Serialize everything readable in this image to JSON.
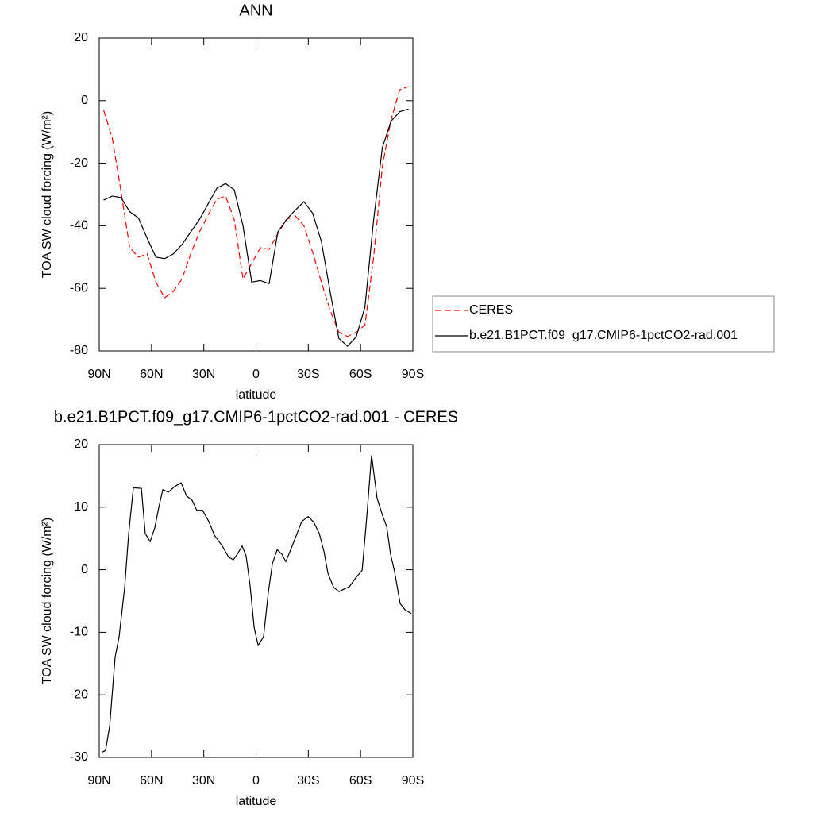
{
  "chart_data": [
    {
      "type": "line",
      "title": "ANN",
      "xlabel": "latitude",
      "ylabel": "TOA SW cloud forcing (W/m²)",
      "x": [
        87.5,
        82.5,
        77.5,
        72.5,
        67.5,
        62.5,
        57.5,
        52.5,
        47.5,
        42.5,
        37.5,
        32.5,
        27.5,
        22.5,
        17.5,
        12.5,
        7.5,
        2.5,
        -2.5,
        -7.5,
        -12.5,
        -17.5,
        -22.5,
        -27.5,
        -32.5,
        -37.5,
        -42.5,
        -47.5,
        -52.5,
        -57.5,
        -62.5,
        -67.5,
        -72.5,
        -77.5,
        -82.5,
        -87.5
      ],
      "series": [
        {
          "name": "CERES",
          "color": "#ff0000",
          "dash": "dashed",
          "values": [
            -3,
            -12,
            -29,
            -47,
            -50,
            -49,
            -58,
            -63,
            -61,
            -57,
            -49,
            -42,
            -36.5,
            -31.5,
            -30.5,
            -38,
            -57,
            -52,
            -47,
            -47.5,
            -42.5,
            -38,
            -36.8,
            -40,
            -48.5,
            -58,
            -67,
            -74,
            -75.4,
            -74,
            -71.8,
            -50,
            -21,
            -6,
            3.5,
            4.5
          ]
        },
        {
          "name": "b.e21.B1PCT.f09_g17.CMIP6-1pctCO2-rad.001",
          "color": "#000000",
          "dash": "solid",
          "values": [
            -31.8,
            -30.5,
            -31,
            -35.5,
            -37.5,
            -44,
            -50,
            -50.5,
            -49,
            -46,
            -42,
            -38,
            -33,
            -28,
            -26.5,
            -28.5,
            -40,
            -58,
            -57.5,
            -58.5,
            -42,
            -38,
            -35,
            -32.3,
            -36,
            -45,
            -61,
            -76,
            -78.5,
            -75.5,
            -66,
            -38,
            -15,
            -6.5,
            -3.5,
            -2.7
          ]
        }
      ],
      "xlim": [
        90,
        -90
      ],
      "xticks": [
        {
          "value": 90,
          "label": "90N"
        },
        {
          "value": 60,
          "label": "60N"
        },
        {
          "value": 30,
          "label": "30N"
        },
        0,
        {
          "value": -30,
          "label": "30S"
        },
        {
          "value": -60,
          "label": "60S"
        },
        {
          "value": -90,
          "label": "90S"
        }
      ],
      "ylim": [
        -80,
        20
      ],
      "yticks": [
        -80,
        -60,
        -40,
        -20,
        0,
        20
      ],
      "legend": "right"
    },
    {
      "type": "line",
      "title": "b.e21.B1PCT.f09_g17.CMIP6-1pctCO2-rad.001 - CERES",
      "xlabel": "latitude",
      "ylabel": "TOA SW cloud forcing (W/m²)",
      "x": [
        88.6,
        86.4,
        84,
        80.9,
        78.6,
        75.4,
        73.1,
        70.4,
        65.8,
        63.6,
        60.8,
        58.1,
        55.8,
        53.5,
        50.3,
        46.7,
        43,
        39.9,
        36.7,
        34,
        30.7,
        27.1,
        23.9,
        19.4,
        15.7,
        13,
        10.7,
        8,
        5.7,
        3.4,
        1.1,
        -1.2,
        -4.3,
        -7.1,
        -9.4,
        -12.1,
        -14.8,
        -17.1,
        -20.3,
        -23,
        -26.2,
        -29.9,
        -33.1,
        -36.3,
        -39,
        -41.3,
        -44.5,
        -47.6,
        -50.4,
        -53.6,
        -57.2,
        -60.9,
        -63.6,
        -66.3,
        -69.5,
        -72.7,
        -75,
        -77.2,
        -79.5,
        -82.7,
        -85.5,
        -89.1
      ],
      "values": [
        -29.2,
        -28.9,
        -25,
        -14,
        -10.7,
        -2.8,
        5.8,
        13.1,
        13,
        5.8,
        4.5,
        6.7,
        10,
        12.8,
        12.4,
        13.3,
        13.9,
        11.8,
        11.1,
        9.5,
        9.5,
        7.7,
        5.5,
        3.8,
        2,
        1.6,
        2.5,
        3.8,
        2.2,
        -2.6,
        -9.2,
        -12.1,
        -10.7,
        -3.5,
        1,
        3.2,
        2.5,
        1.3,
        3.5,
        5.4,
        7.7,
        8.5,
        7.6,
        5.8,
        2.9,
        -0.6,
        -2.8,
        -3.5,
        -3.1,
        -2.7,
        -1.3,
        -0.1,
        8.6,
        18.3,
        11.4,
        8.6,
        6.9,
        2.5,
        -0.3,
        -5.4,
        -6.4,
        -7
      ],
      "color": "#000000",
      "xlim": [
        90,
        -90
      ],
      "xticks": [
        {
          "value": 90,
          "label": "90N"
        },
        {
          "value": 60,
          "label": "60N"
        },
        {
          "value": 30,
          "label": "30N"
        },
        0,
        {
          "value": -30,
          "label": "30S"
        },
        {
          "value": -60,
          "label": "60S"
        },
        {
          "value": -90,
          "label": "90S"
        }
      ],
      "ylim": [
        -30,
        20
      ],
      "yticks": [
        -30,
        -20,
        -10,
        0,
        10,
        20
      ]
    }
  ]
}
